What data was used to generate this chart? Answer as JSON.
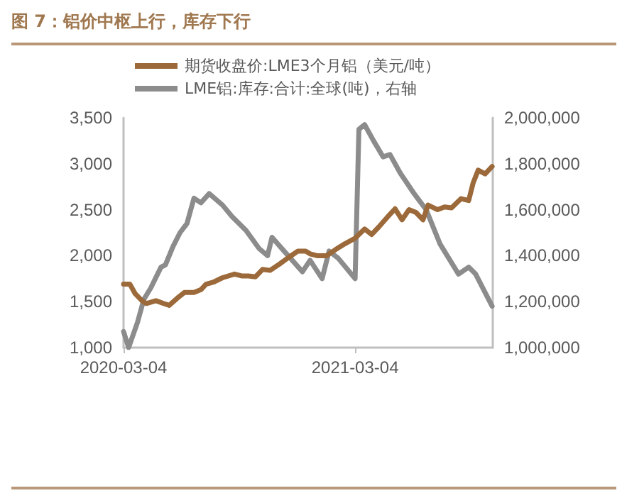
{
  "chart_data": {
    "type": "line",
    "title": "图 7：铝价中枢上行，库存下行",
    "legend": "top",
    "xlim": [
      "2020-03-04",
      "2021-10-07"
    ],
    "xticks": [
      "2020-03-04",
      "2021-03-04"
    ],
    "ylim": [
      1000,
      3500
    ],
    "yticks": [
      {
        "value": 1000,
        "label": "1,000"
      },
      {
        "value": 1500,
        "label": "1,500"
      },
      {
        "value": 2000,
        "label": "2,000"
      },
      {
        "value": 2500,
        "label": "2,500"
      },
      {
        "value": 3000,
        "label": "3,000"
      },
      {
        "value": 3500,
        "label": "3,500"
      }
    ],
    "y2lim": [
      1000000,
      2000000
    ],
    "y2ticks": [
      {
        "value": 1000000,
        "label": "1,000,000"
      },
      {
        "value": 1200000,
        "label": "1,200,000"
      },
      {
        "value": 1400000,
        "label": "1,400,000"
      },
      {
        "value": 1600000,
        "label": "1,600,000"
      },
      {
        "value": 1800000,
        "label": "1,800,000"
      },
      {
        "value": 2000000,
        "label": "2,000,000"
      }
    ],
    "series": [
      {
        "name": "期货收盘价:LME3个月铝（美元/吨）",
        "color": "#9c6a3a",
        "x": [
          "2020-03-04",
          "2020-03-14",
          "2020-03-22",
          "2020-04-02",
          "2020-04-09",
          "2020-04-24",
          "2020-05-06",
          "2020-05-15",
          "2020-05-28",
          "2020-06-08",
          "2020-06-23",
          "2020-07-04",
          "2020-07-12",
          "2020-07-23",
          "2020-08-07",
          "2020-08-26",
          "2020-09-06",
          "2020-09-17",
          "2020-09-28",
          "2020-10-09",
          "2020-10-21",
          "2020-11-05",
          "2020-11-19",
          "2020-12-04",
          "2020-12-16",
          "2020-12-23",
          "2021-01-03",
          "2021-01-18",
          "2021-02-02",
          "2021-02-16",
          "2021-03-04",
          "2021-03-19",
          "2021-03-30",
          "2021-04-10",
          "2021-04-24",
          "2021-05-06",
          "2021-05-17",
          "2021-05-28",
          "2021-06-08",
          "2021-06-19",
          "2021-06-27",
          "2021-07-12",
          "2021-07-23",
          "2021-08-03",
          "2021-08-18",
          "2021-08-30",
          "2021-09-06",
          "2021-09-14",
          "2021-09-25",
          "2021-10-06"
        ],
        "values": [
          1690,
          1690,
          1590,
          1510,
          1480,
          1510,
          1480,
          1460,
          1540,
          1600,
          1600,
          1630,
          1690,
          1710,
          1760,
          1800,
          1780,
          1780,
          1770,
          1850,
          1840,
          1910,
          1980,
          2050,
          2050,
          2020,
          2000,
          2000,
          2070,
          2130,
          2190,
          2290,
          2230,
          2310,
          2420,
          2510,
          2390,
          2500,
          2470,
          2390,
          2550,
          2500,
          2530,
          2520,
          2620,
          2600,
          2790,
          2930,
          2890,
          2970
        ]
      },
      {
        "name": "LME铝:库存:合计:全球(吨)，右轴",
        "color": "#8c8c8c",
        "axis": "y2",
        "x": [
          "2020-03-04",
          "2020-03-12",
          "2020-03-26",
          "2020-04-05",
          "2020-04-16",
          "2020-05-02",
          "2020-05-09",
          "2020-05-21",
          "2020-06-01",
          "2020-06-12",
          "2020-06-23",
          "2020-07-04",
          "2020-07-17",
          "2020-08-07",
          "2020-08-22",
          "2020-09-13",
          "2020-10-04",
          "2020-10-17",
          "2020-10-24",
          "2020-11-12",
          "2020-12-11",
          "2020-12-23",
          "2021-01-11",
          "2021-01-22",
          "2021-02-05",
          "2021-03-04",
          "2021-03-10",
          "2021-03-19",
          "2021-04-02",
          "2021-04-17",
          "2021-04-28",
          "2021-05-14",
          "2021-06-05",
          "2021-06-24",
          "2021-07-16",
          "2021-08-14",
          "2021-08-30",
          "2021-09-10",
          "2021-10-06"
        ],
        "values": [
          1070000,
          1000000,
          1110000,
          1210000,
          1260000,
          1350000,
          1360000,
          1440000,
          1500000,
          1540000,
          1650000,
          1630000,
          1670000,
          1620000,
          1570000,
          1510000,
          1430000,
          1400000,
          1480000,
          1420000,
          1330000,
          1380000,
          1300000,
          1420000,
          1390000,
          1300000,
          1950000,
          1970000,
          1900000,
          1830000,
          1840000,
          1760000,
          1670000,
          1600000,
          1450000,
          1320000,
          1350000,
          1320000,
          1180000
        ]
      }
    ]
  }
}
